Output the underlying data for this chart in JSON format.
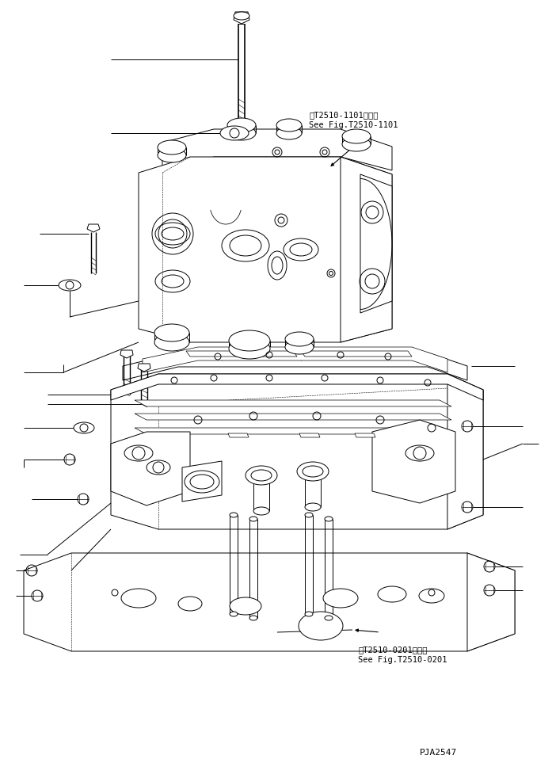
{
  "fig_width": 6.97,
  "fig_height": 9.58,
  "dpi": 100,
  "background_color": "#ffffff",
  "annotation1_line1": "笮T2510-1101図参照",
  "annotation1_line2": "See Fig.T2510-1101",
  "annotation2_line1": "笮T2510-0201図参照",
  "annotation2_line2": "See Fig.T2510-0201",
  "part_id": "PJA2547",
  "line_color": "#000000",
  "line_width": 0.7
}
